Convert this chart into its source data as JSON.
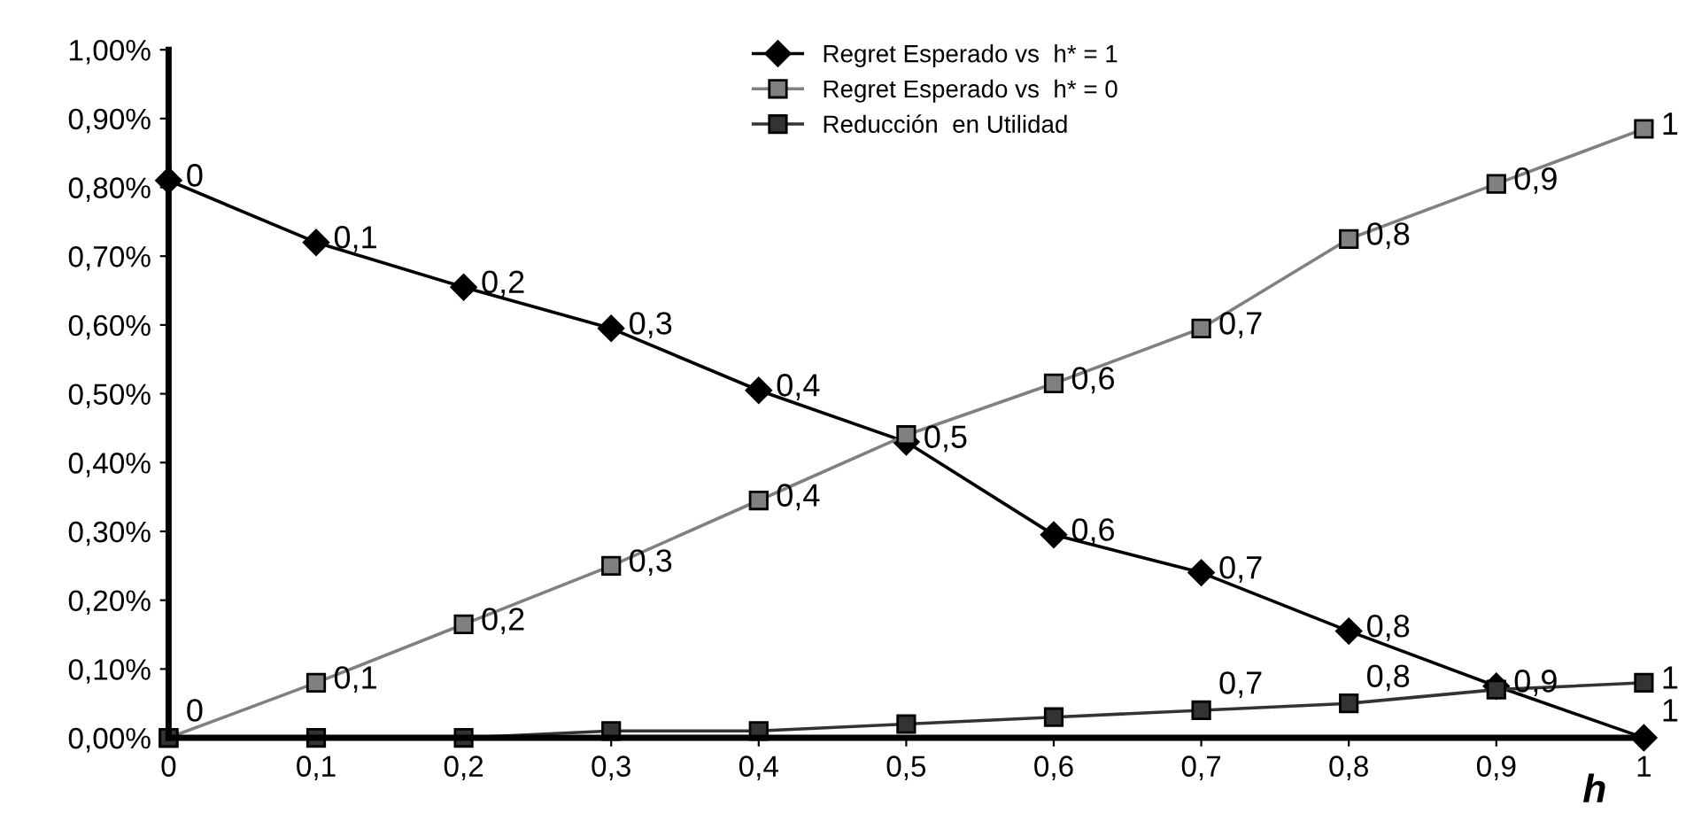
{
  "chart_data": {
    "type": "line",
    "xlabel": "h",
    "x": [
      0,
      0.1,
      0.2,
      0.3,
      0.4,
      0.5,
      0.6,
      0.7,
      0.8,
      0.9,
      1
    ],
    "series": [
      {
        "name": "Regret Esperado vs  h* = 1",
        "color": "#000000",
        "marker": "diamond",
        "values": [
          0.81,
          0.72,
          0.655,
          0.595,
          0.505,
          0.43,
          0.295,
          0.24,
          0.155,
          0.075,
          0.0
        ]
      },
      {
        "name": "Regret Esperado vs  h* = 0",
        "color": "#808080",
        "marker": "square",
        "values": [
          0.0,
          0.08,
          0.165,
          0.25,
          0.345,
          0.44,
          0.515,
          0.595,
          0.725,
          0.805,
          0.885
        ]
      },
      {
        "name": "Reducción  en Utilidad",
        "color": "#333333",
        "marker": "square",
        "values": [
          0.0,
          0.0,
          0.0,
          0.01,
          0.01,
          0.02,
          0.03,
          0.04,
          0.05,
          0.07,
          0.08
        ]
      }
    ],
    "annotations": [
      {
        "text": "0",
        "x": 0,
        "y": 0.81
      },
      {
        "text": "0,1",
        "x": 0.1,
        "y": 0.72
      },
      {
        "text": "0,2",
        "x": 0.2,
        "y": 0.655
      },
      {
        "text": "0,3",
        "x": 0.3,
        "y": 0.595
      },
      {
        "text": "0,4",
        "x": 0.4,
        "y": 0.505
      },
      {
        "text": "0,5",
        "x": 0.5,
        "y": 0.43
      },
      {
        "text": "0,6",
        "x": 0.6,
        "y": 0.295
      },
      {
        "text": "0,7",
        "x": 0.7,
        "y": 0.24
      },
      {
        "text": "0,8",
        "x": 0.8,
        "y": 0.155
      },
      {
        "text": "0,9",
        "x": 0.9,
        "y": 0.075
      },
      {
        "text": "1",
        "x": 1,
        "y": 0.0
      },
      {
        "text": "0",
        "x": 0,
        "y": 0.0
      },
      {
        "text": "0,1",
        "x": 0.1,
        "y": 0.08
      },
      {
        "text": "0,2",
        "x": 0.2,
        "y": 0.165
      },
      {
        "text": "0,3",
        "x": 0.3,
        "y": 0.25
      },
      {
        "text": "0,4",
        "x": 0.4,
        "y": 0.345
      },
      {
        "text": "0,6",
        "x": 0.6,
        "y": 0.515
      },
      {
        "text": "0,7",
        "x": 0.7,
        "y": 0.595
      },
      {
        "text": "0,8",
        "x": 0.8,
        "y": 0.725
      },
      {
        "text": "0,9",
        "x": 0.9,
        "y": 0.805
      },
      {
        "text": "1",
        "x": 1,
        "y": 0.885
      },
      {
        "text": "0,7",
        "x": 0.7,
        "y": 0.04
      },
      {
        "text": "0,8",
        "x": 0.8,
        "y": 0.05
      },
      {
        "text": "1",
        "x": 1,
        "y": 0.08
      }
    ],
    "xlim": [
      0,
      1
    ],
    "xticks": [
      0,
      {
        "value": 0.1,
        "label": "0,1"
      },
      {
        "value": 0.2,
        "label": "0,2"
      },
      {
        "value": 0.3,
        "label": "0,3"
      },
      {
        "value": 0.4,
        "label": "0,4"
      },
      {
        "value": 0.5,
        "label": "0,5"
      },
      {
        "value": 0.6,
        "label": "0,6"
      },
      {
        "value": 0.7,
        "label": "0,7"
      },
      {
        "value": 0.8,
        "label": "0,8"
      },
      {
        "value": 0.9,
        "label": "0,9"
      },
      1
    ],
    "ylim": [
      0,
      1.0
    ],
    "yticks": [
      {
        "value": 0,
        "label": "0,00%"
      },
      {
        "value": 0.1,
        "label": "0,10%"
      },
      {
        "value": 0.2,
        "label": "0,20%"
      },
      {
        "value": 0.3,
        "label": "0,30%"
      },
      {
        "value": 0.4,
        "label": "0,40%"
      },
      {
        "value": 0.5,
        "label": "0,50%"
      },
      {
        "value": 0.6,
        "label": "0,60%"
      },
      {
        "value": 0.7,
        "label": "0,70%"
      },
      {
        "value": 0.8,
        "label": "0,80%"
      },
      {
        "value": 0.9,
        "label": "0,90%"
      },
      {
        "value": 1.0,
        "label": "1,00%"
      }
    ],
    "grid": false,
    "legend": "top",
    "line_style": "solid"
  }
}
